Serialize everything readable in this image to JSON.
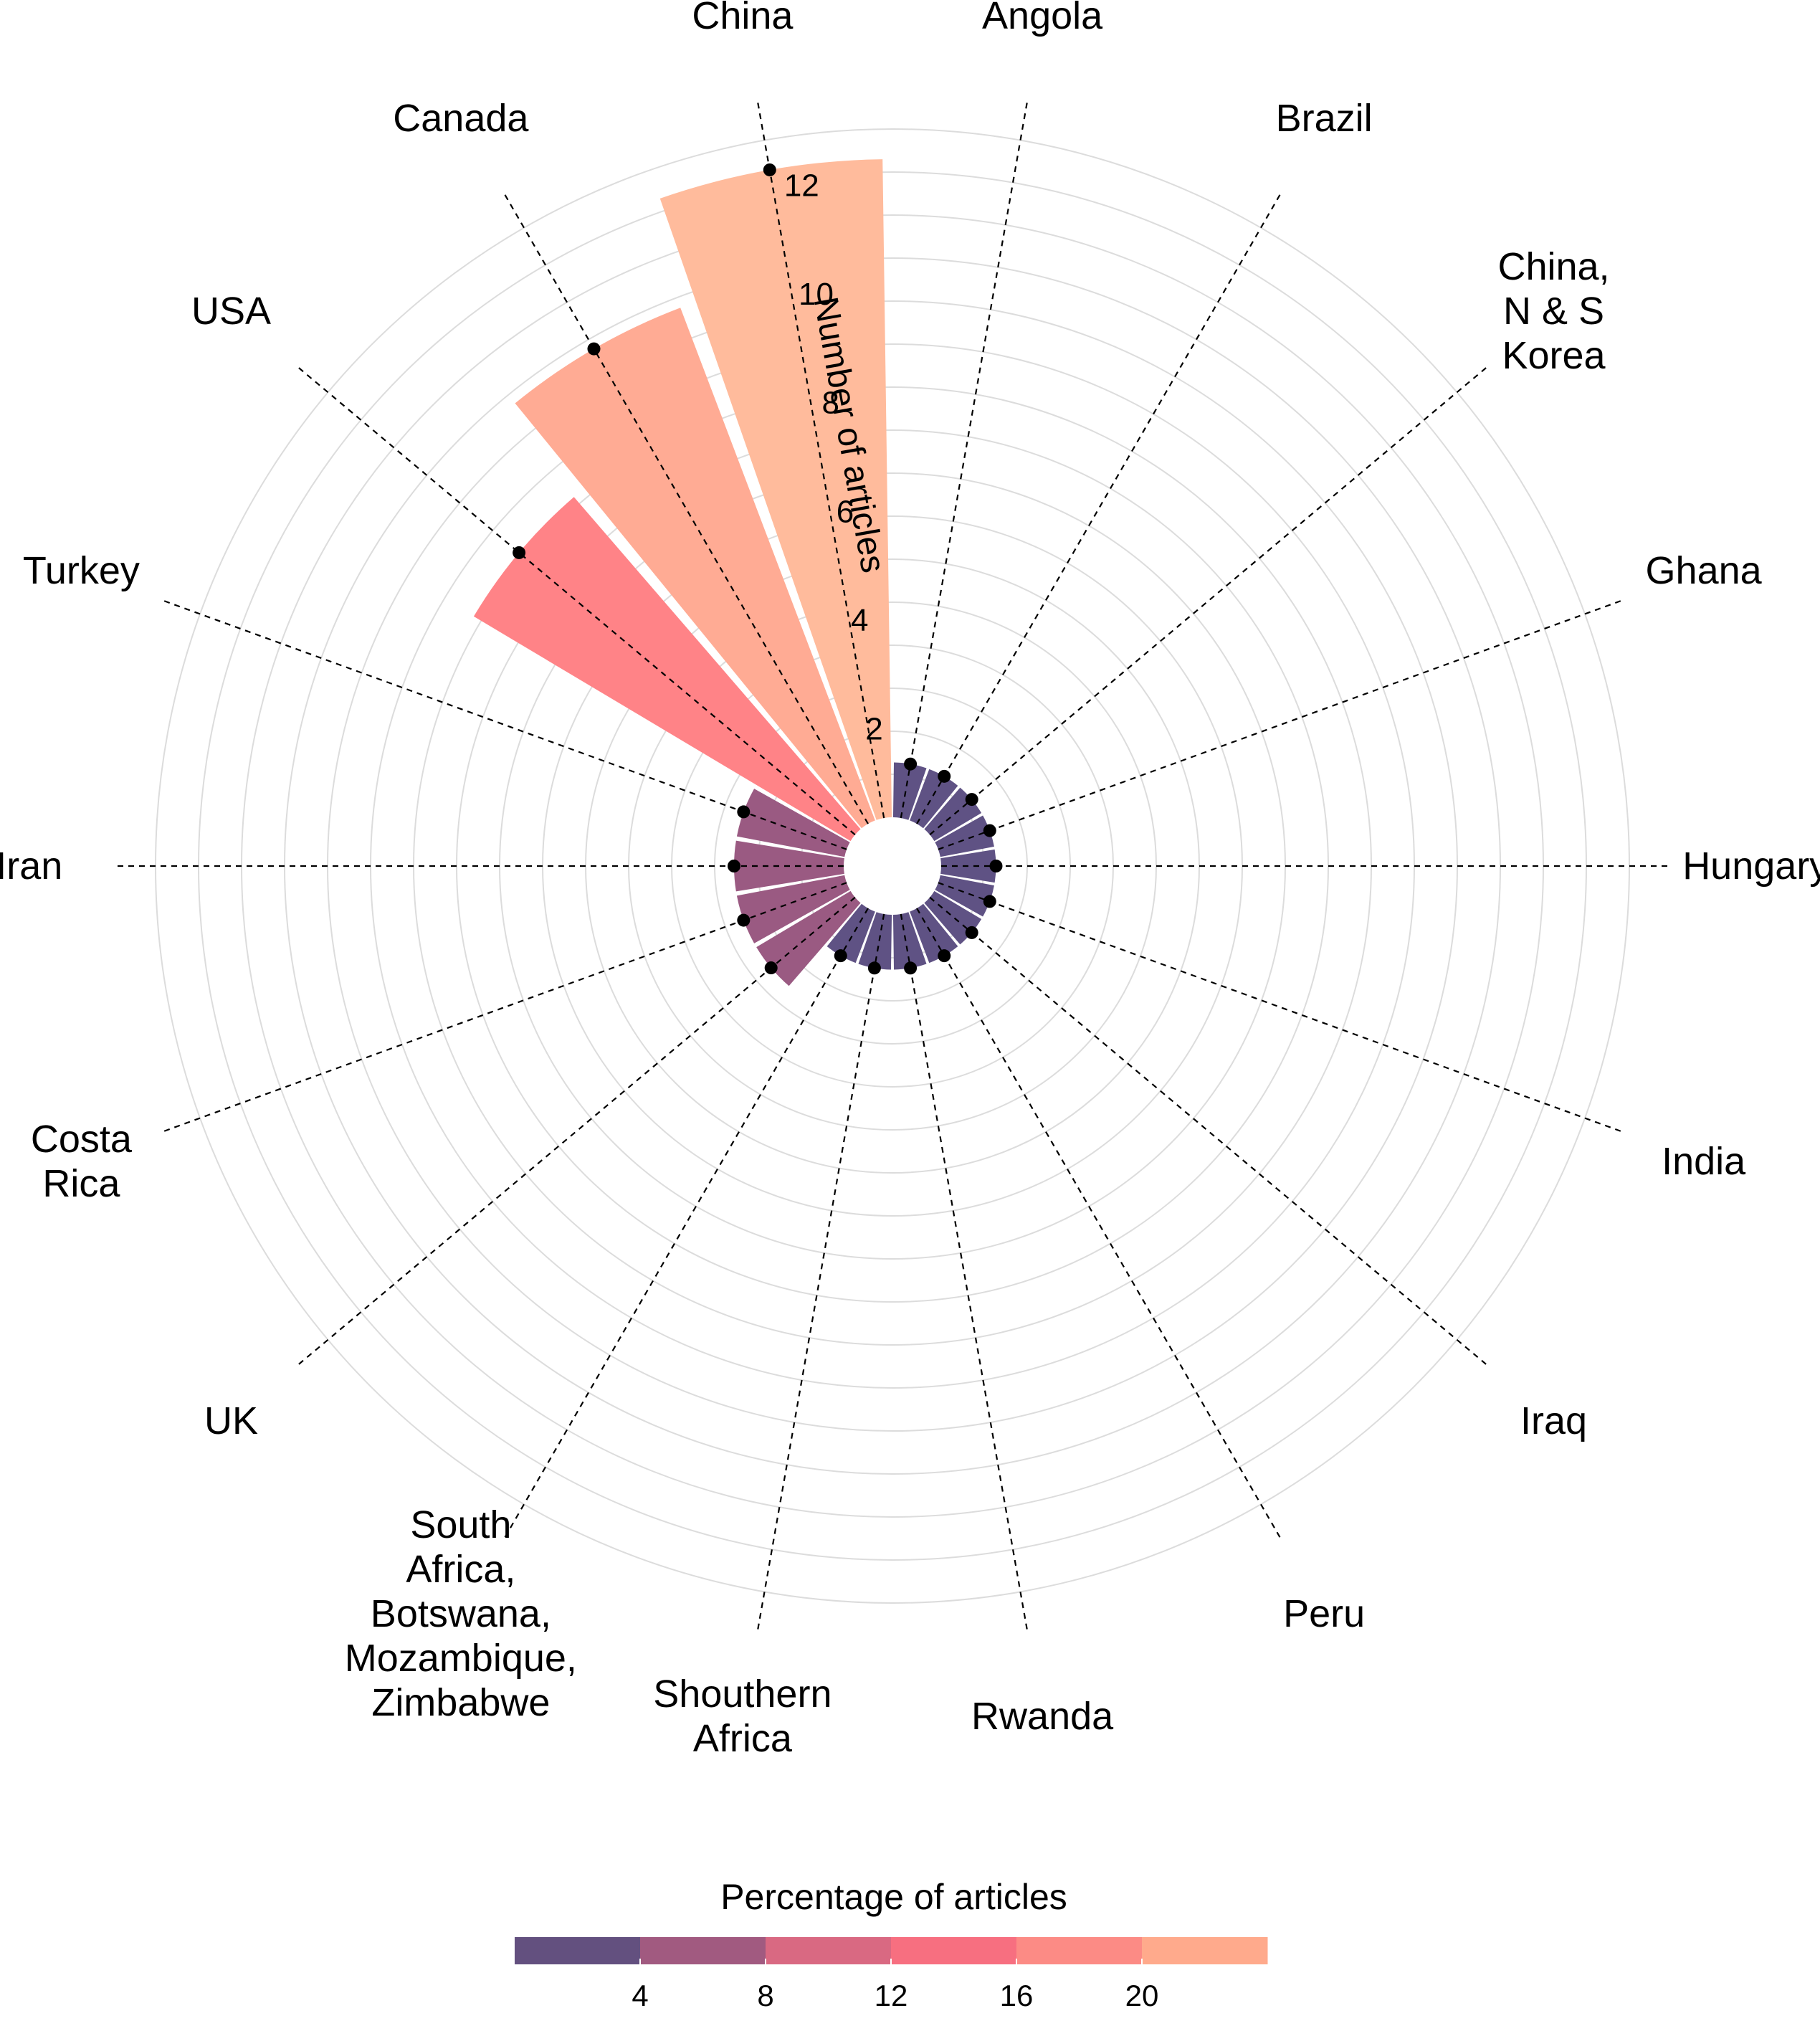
{
  "chart_data": {
    "type": "polar-bar",
    "radial_axis_label": "Number of articles",
    "radial_ticks": [
      2,
      4,
      6,
      8,
      10,
      12
    ],
    "radial_range": [
      0,
      12.5
    ],
    "categories": [
      {
        "label": [
          "Angola"
        ],
        "articles": 1,
        "percentage": 2.6
      },
      {
        "label": [
          "Brazil"
        ],
        "articles": 1,
        "percentage": 2.6
      },
      {
        "label": [
          "China,",
          "N & S",
          "Korea"
        ],
        "articles": 1,
        "percentage": 2.6
      },
      {
        "label": [
          "Ghana"
        ],
        "articles": 1,
        "percentage": 2.6
      },
      {
        "label": [
          "Hungary"
        ],
        "articles": 1,
        "percentage": 2.6
      },
      {
        "label": [
          "India"
        ],
        "articles": 1,
        "percentage": 2.6
      },
      {
        "label": [
          "Iraq"
        ],
        "articles": 1,
        "percentage": 2.6
      },
      {
        "label": [
          "Peru"
        ],
        "articles": 1,
        "percentage": 2.6
      },
      {
        "label": [
          "Rwanda"
        ],
        "articles": 1,
        "percentage": 2.6
      },
      {
        "label": [
          "Shouthern",
          "Africa"
        ],
        "articles": 1,
        "percentage": 2.6
      },
      {
        "label": [
          "South",
          "Africa,",
          "Botswana,",
          "Mozambique,",
          "Zimbabwe"
        ],
        "articles": 1,
        "percentage": 2.6
      },
      {
        "label": [
          "UK"
        ],
        "articles": 2,
        "percentage": 5.1
      },
      {
        "label": [
          "Costa",
          "Rica"
        ],
        "articles": 2,
        "percentage": 5.1
      },
      {
        "label": [
          "Iran"
        ],
        "articles": 2,
        "percentage": 5.1
      },
      {
        "label": [
          "Turkey"
        ],
        "articles": 2,
        "percentage": 5.1
      },
      {
        "label": [
          "USA"
        ],
        "articles": 8,
        "percentage": 20.5
      },
      {
        "label": [
          "Canada"
        ],
        "articles": 10,
        "percentage": 25.6
      },
      {
        "label": [
          "China"
        ],
        "articles": 12,
        "percentage": 30.8
      }
    ],
    "legend": {
      "title": "Percentage of articles",
      "ticks": [
        4,
        8,
        12,
        16,
        20
      ],
      "bins": [
        {
          "from": 0,
          "to": 4,
          "color": "#63507f"
        },
        {
          "from": 4,
          "to": 8,
          "color": "#a15a80"
        },
        {
          "from": 8,
          "to": 12,
          "color": "#d96982"
        },
        {
          "from": 12,
          "to": 16,
          "color": "#f76f80"
        },
        {
          "from": 16,
          "to": 20,
          "color": "#fc8b85"
        },
        {
          "from": 20,
          "to": 24,
          "color": "#ffaa8c"
        }
      ]
    },
    "colors": {
      "low": "#5f5284",
      "mid": "#9a5a82",
      "high": "#ff8387",
      "canada": "#ffab94",
      "china": "#ffbb9c",
      "grid": "#dcdcdc"
    }
  }
}
